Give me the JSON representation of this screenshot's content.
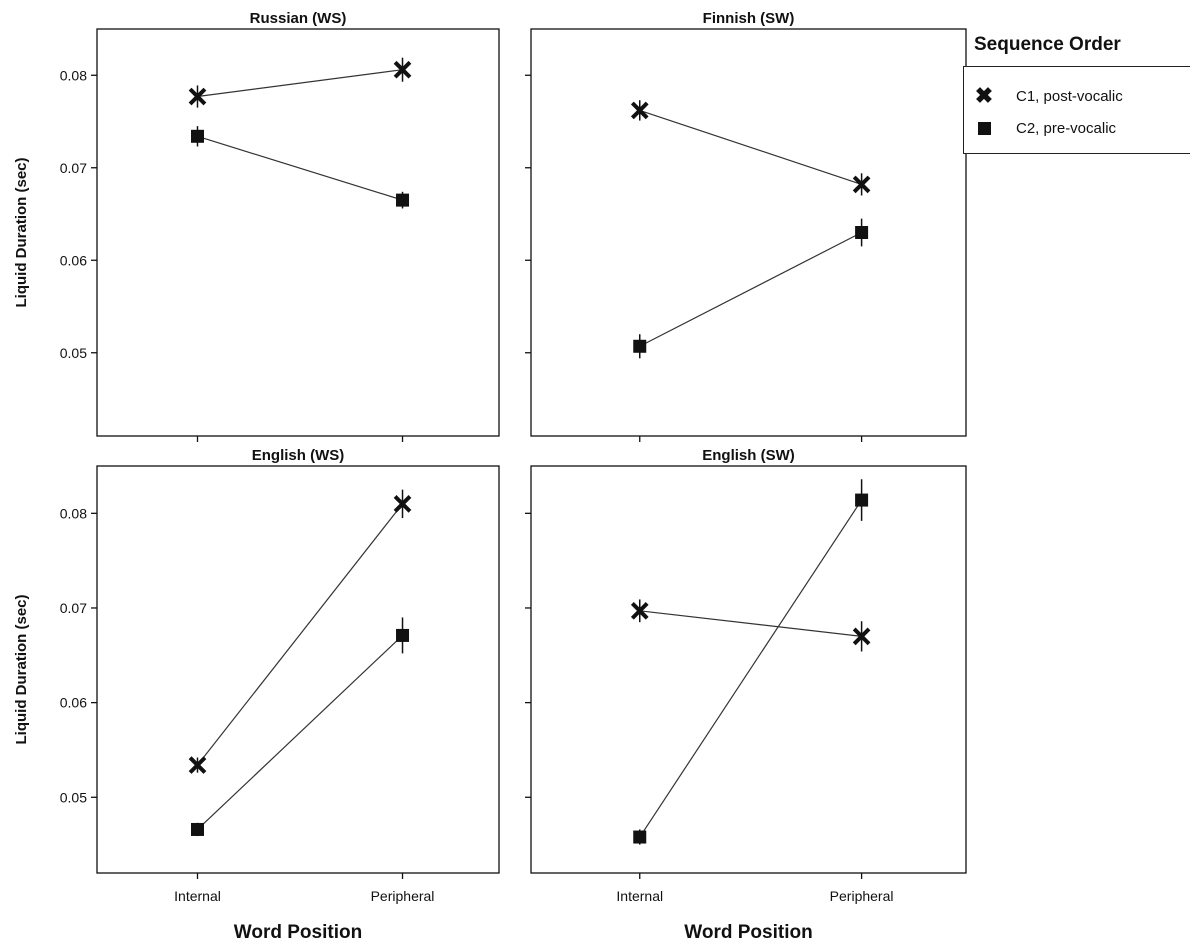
{
  "chart_data": [
    {
      "type": "line",
      "title": "Russian (WS)",
      "xlabel": "",
      "ylabel": "Liquid Duration (sec)",
      "categories": [
        "Internal",
        "Peripheral"
      ],
      "ylim": [
        0.041,
        0.085
      ],
      "yticks": [
        "0.05",
        "0.06",
        "0.07",
        "0.08"
      ],
      "show_xtick_labels": false,
      "series": [
        {
          "name": "C1, post-vocalic",
          "marker": "x",
          "values": [
            0.0777,
            0.0806
          ],
          "err": [
            0.0012,
            0.0013
          ]
        },
        {
          "name": "C2, pre-vocalic",
          "marker": "square",
          "values": [
            0.0734,
            0.0665
          ],
          "err": [
            0.0011,
            0.0009
          ]
        }
      ]
    },
    {
      "type": "line",
      "title": "Finnish (SW)",
      "xlabel": "",
      "ylabel": "",
      "categories": [
        "Internal",
        "Peripheral"
      ],
      "ylim": [
        0.041,
        0.085
      ],
      "yticks": [
        "",
        "",
        "",
        ""
      ],
      "show_xtick_labels": false,
      "series": [
        {
          "name": "C1, post-vocalic",
          "marker": "x",
          "values": [
            0.0762,
            0.0682
          ],
          "err": [
            0.0011,
            0.0012
          ]
        },
        {
          "name": "C2, pre-vocalic",
          "marker": "square",
          "values": [
            0.0507,
            0.063
          ],
          "err": [
            0.0013,
            0.0015
          ]
        }
      ]
    },
    {
      "type": "line",
      "title": "English (WS)",
      "xlabel": "Word Position",
      "ylabel": "Liquid Duration (sec)",
      "categories": [
        "Internal",
        "Peripheral"
      ],
      "ylim": [
        0.042,
        0.085
      ],
      "yticks": [
        "0.05",
        "0.06",
        "0.07",
        "0.08"
      ],
      "show_xtick_labels": true,
      "series": [
        {
          "name": "C1, post-vocalic",
          "marker": "x",
          "values": [
            0.0534,
            0.081
          ],
          "err": [
            0.0008,
            0.0015
          ]
        },
        {
          "name": "C2, pre-vocalic",
          "marker": "square",
          "values": [
            0.0466,
            0.0671
          ],
          "err": [
            0.0007,
            0.0019
          ]
        }
      ]
    },
    {
      "type": "line",
      "title": "English (SW)",
      "xlabel": "Word Position",
      "ylabel": "",
      "categories": [
        "Internal",
        "Peripheral"
      ],
      "ylim": [
        0.042,
        0.085
      ],
      "yticks": [
        "",
        "",
        "",
        ""
      ],
      "show_xtick_labels": true,
      "series": [
        {
          "name": "C1, post-vocalic",
          "marker": "x",
          "values": [
            0.0697,
            0.067
          ],
          "err": [
            0.0012,
            0.0016
          ]
        },
        {
          "name": "C2, pre-vocalic",
          "marker": "square",
          "values": [
            0.0458,
            0.0814
          ],
          "err": [
            0.0008,
            0.0022
          ]
        }
      ]
    }
  ],
  "legend": {
    "title": "Sequence Order",
    "items": [
      {
        "label": "C1, post-vocalic",
        "marker": "x"
      },
      {
        "label": "C2, pre-vocalic",
        "marker": "square"
      }
    ]
  },
  "colors": {
    "ink": "#111111",
    "line": "#333333"
  }
}
